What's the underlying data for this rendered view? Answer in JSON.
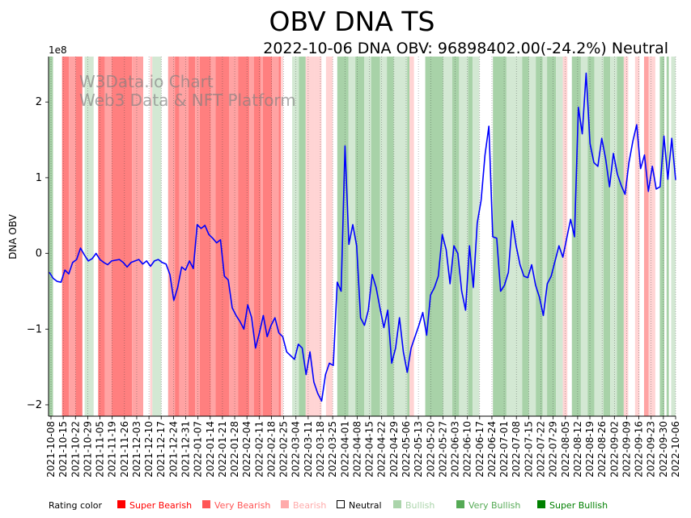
{
  "chart_data": {
    "type": "line",
    "title": "OBV DNA TS",
    "subtitle": "2022-10-06 DNA OBV: 96898402.00(-24.2%) Neutral",
    "ylabel": "DNA OBV",
    "xlabel": "",
    "y_exponent_label": "1e8",
    "ylim": [
      -2.15,
      2.6
    ],
    "y_ticks": [
      -2,
      -1,
      0,
      1,
      2
    ],
    "x_start": "2021-10-08",
    "x_end": "2022-10-06",
    "x_tick_labels": [
      "2021-10-08",
      "2021-10-15",
      "2021-10-22",
      "2021-10-29",
      "2021-11-05",
      "2021-11-19",
      "2021-11-26",
      "2021-12-03",
      "2021-12-10",
      "2021-12-17",
      "2021-12-24",
      "2021-12-31",
      "2022-01-07",
      "2022-01-14",
      "2022-01-21",
      "2022-01-28",
      "2022-02-04",
      "2022-02-11",
      "2022-02-18",
      "2022-02-25",
      "2022-03-04",
      "2022-03-11",
      "2022-03-18",
      "2022-03-25",
      "2022-04-01",
      "2022-04-08",
      "2022-04-15",
      "2022-04-22",
      "2022-04-29",
      "2022-05-06",
      "2022-05-13",
      "2022-05-20",
      "2022-05-27",
      "2022-06-03",
      "2022-06-10",
      "2022-06-17",
      "2022-06-24",
      "2022-07-01",
      "2022-07-08",
      "2022-07-15",
      "2022-07-22",
      "2022-07-29",
      "2022-08-05",
      "2022-08-12",
      "2022-08-19",
      "2022-08-26",
      "2022-09-02",
      "2022-09-09",
      "2022-09-16",
      "2022-09-23",
      "2022-09-30",
      "2022-10-06"
    ],
    "series": [
      {
        "name": "DNA OBV",
        "color": "#0000ff",
        "points": [
          [
            0,
            -0.25
          ],
          [
            1,
            -0.33
          ],
          [
            2,
            -0.37
          ],
          [
            3,
            -0.38
          ],
          [
            4,
            -0.22
          ],
          [
            5,
            -0.27
          ],
          [
            6,
            -0.12
          ],
          [
            7,
            -0.08
          ],
          [
            8,
            0.07
          ],
          [
            9,
            -0.02
          ],
          [
            10,
            -0.1
          ],
          [
            11,
            -0.07
          ],
          [
            12,
            0.0
          ],
          [
            13,
            -0.08
          ],
          [
            14,
            -0.12
          ],
          [
            15,
            -0.15
          ],
          [
            16,
            -0.1
          ],
          [
            17,
            -0.09
          ],
          [
            18,
            -0.08
          ],
          [
            19,
            -0.12
          ],
          [
            20,
            -0.18
          ],
          [
            21,
            -0.12
          ],
          [
            22,
            -0.1
          ],
          [
            23,
            -0.08
          ],
          [
            24,
            -0.14
          ],
          [
            25,
            -0.1
          ],
          [
            26,
            -0.17
          ],
          [
            27,
            -0.1
          ],
          [
            28,
            -0.08
          ],
          [
            29,
            -0.12
          ],
          [
            30,
            -0.14
          ],
          [
            31,
            -0.28
          ],
          [
            32,
            -0.62
          ],
          [
            33,
            -0.45
          ],
          [
            34,
            -0.18
          ],
          [
            35,
            -0.22
          ],
          [
            36,
            -0.1
          ],
          [
            37,
            -0.2
          ],
          [
            38,
            0.38
          ],
          [
            39,
            0.33
          ],
          [
            40,
            0.37
          ],
          [
            41,
            0.25
          ],
          [
            42,
            0.2
          ],
          [
            43,
            0.14
          ],
          [
            44,
            0.18
          ],
          [
            45,
            -0.3
          ],
          [
            46,
            -0.35
          ],
          [
            47,
            -0.72
          ],
          [
            48,
            -0.82
          ],
          [
            49,
            -0.9
          ],
          [
            50,
            -1.0
          ],
          [
            51,
            -0.68
          ],
          [
            52,
            -0.85
          ],
          [
            53,
            -1.25
          ],
          [
            54,
            -1.05
          ],
          [
            55,
            -0.82
          ],
          [
            56,
            -1.1
          ],
          [
            57,
            -0.95
          ],
          [
            58,
            -0.85
          ],
          [
            59,
            -1.05
          ],
          [
            60,
            -1.1
          ],
          [
            61,
            -1.3
          ],
          [
            62,
            -1.35
          ],
          [
            63,
            -1.4
          ],
          [
            64,
            -1.2
          ],
          [
            65,
            -1.25
          ],
          [
            66,
            -1.6
          ],
          [
            67,
            -1.3
          ],
          [
            68,
            -1.7
          ],
          [
            69,
            -1.85
          ],
          [
            70,
            -1.95
          ],
          [
            71,
            -1.6
          ],
          [
            72,
            -1.45
          ],
          [
            73,
            -1.48
          ],
          [
            74,
            -0.38
          ],
          [
            75,
            -0.5
          ],
          [
            76,
            1.42
          ],
          [
            77,
            0.12
          ],
          [
            78,
            0.38
          ],
          [
            79,
            0.1
          ],
          [
            80,
            -0.85
          ],
          [
            81,
            -0.95
          ],
          [
            82,
            -0.75
          ],
          [
            83,
            -0.28
          ],
          [
            84,
            -0.45
          ],
          [
            85,
            -0.72
          ],
          [
            86,
            -0.98
          ],
          [
            87,
            -0.75
          ],
          [
            88,
            -1.45
          ],
          [
            89,
            -1.25
          ],
          [
            90,
            -0.85
          ],
          [
            91,
            -1.3
          ],
          [
            92,
            -1.57
          ],
          [
            93,
            -1.25
          ],
          [
            94,
            -1.1
          ],
          [
            95,
            -0.95
          ],
          [
            96,
            -0.78
          ],
          [
            97,
            -1.08
          ],
          [
            98,
            -0.55
          ],
          [
            99,
            -0.45
          ],
          [
            100,
            -0.3
          ],
          [
            101,
            0.25
          ],
          [
            102,
            0.05
          ],
          [
            103,
            -0.4
          ],
          [
            104,
            0.1
          ],
          [
            105,
            0.0
          ],
          [
            106,
            -0.5
          ],
          [
            107,
            -0.75
          ],
          [
            108,
            0.1
          ],
          [
            109,
            -0.45
          ],
          [
            110,
            0.4
          ],
          [
            111,
            0.7
          ],
          [
            112,
            1.3
          ],
          [
            113,
            1.68
          ],
          [
            114,
            0.22
          ],
          [
            115,
            0.2
          ],
          [
            116,
            -0.5
          ],
          [
            117,
            -0.42
          ],
          [
            118,
            -0.25
          ],
          [
            119,
            0.43
          ],
          [
            120,
            0.1
          ],
          [
            121,
            -0.15
          ],
          [
            122,
            -0.3
          ],
          [
            123,
            -0.32
          ],
          [
            124,
            -0.15
          ],
          [
            125,
            -0.42
          ],
          [
            126,
            -0.58
          ],
          [
            127,
            -0.82
          ],
          [
            128,
            -0.4
          ],
          [
            129,
            -0.3
          ],
          [
            130,
            -0.1
          ],
          [
            131,
            0.1
          ],
          [
            132,
            -0.05
          ],
          [
            133,
            0.2
          ],
          [
            134,
            0.45
          ],
          [
            135,
            0.22
          ],
          [
            136,
            1.93
          ],
          [
            137,
            1.58
          ],
          [
            138,
            2.38
          ],
          [
            139,
            1.45
          ],
          [
            140,
            1.2
          ],
          [
            141,
            1.15
          ],
          [
            142,
            1.52
          ],
          [
            143,
            1.25
          ],
          [
            144,
            0.88
          ],
          [
            145,
            1.32
          ],
          [
            146,
            1.05
          ],
          [
            147,
            0.9
          ],
          [
            148,
            0.78
          ],
          [
            149,
            1.2
          ],
          [
            150,
            1.48
          ],
          [
            151,
            1.7
          ],
          [
            152,
            1.12
          ],
          [
            153,
            1.3
          ],
          [
            154,
            0.82
          ],
          [
            155,
            1.15
          ],
          [
            156,
            0.85
          ],
          [
            157,
            0.88
          ],
          [
            158,
            1.55
          ],
          [
            159,
            0.98
          ],
          [
            160,
            1.52
          ],
          [
            161,
            0.97
          ]
        ]
      }
    ],
    "rating_bands": [
      {
        "from": 0,
        "to": 2,
        "r": 6
      },
      {
        "from": 2,
        "to": 3,
        "r": 4
      },
      {
        "from": 6,
        "to": 9,
        "r": 1
      },
      {
        "from": 9,
        "to": 12,
        "r": 2
      },
      {
        "from": 12,
        "to": 15,
        "r": 1
      },
      {
        "from": 16,
        "to": 20,
        "r": 5
      },
      {
        "from": 22,
        "to": 25,
        "r": 1
      },
      {
        "from": 25,
        "to": 28,
        "r": 2
      },
      {
        "from": 28,
        "to": 37,
        "r": 1
      },
      {
        "from": 37,
        "to": 42,
        "r": 2
      },
      {
        "from": 42,
        "to": 45,
        "r": 4
      },
      {
        "from": 45,
        "to": 46,
        "r": 3
      },
      {
        "from": 46,
        "to": 50,
        "r": 5
      },
      {
        "from": 53,
        "to": 56,
        "r": 2
      },
      {
        "from": 56,
        "to": 58,
        "r": 1
      },
      {
        "from": 58,
        "to": 62,
        "r": 2
      },
      {
        "from": 62,
        "to": 65,
        "r": 1
      },
      {
        "from": 65,
        "to": 67,
        "r": 2
      },
      {
        "from": 67,
        "to": 72,
        "r": 1
      },
      {
        "from": 72,
        "to": 74,
        "r": 2
      },
      {
        "from": 74,
        "to": 80,
        "r": 1
      },
      {
        "from": 80,
        "to": 84,
        "r": 2
      },
      {
        "from": 84,
        "to": 89,
        "r": 1
      },
      {
        "from": 89,
        "to": 91,
        "r": 2
      },
      {
        "from": 91,
        "to": 94,
        "r": 1
      },
      {
        "from": 94,
        "to": 95,
        "r": 2
      },
      {
        "from": 95,
        "to": 99,
        "r": 1
      },
      {
        "from": 99,
        "to": 102,
        "r": 2
      },
      {
        "from": 102,
        "to": 103,
        "r": 1
      },
      {
        "from": 103,
        "to": 104,
        "r": 3
      },
      {
        "from": 104,
        "to": 108,
        "r": 4
      },
      {
        "from": 108,
        "to": 111,
        "r": 5
      },
      {
        "from": 111,
        "to": 114,
        "r": 6
      },
      {
        "from": 114,
        "to": 118,
        "r": 3
      },
      {
        "from": 118,
        "to": 121,
        "r": 3
      },
      {
        "from": 123,
        "to": 126,
        "r": 3
      },
      {
        "from": 128,
        "to": 133,
        "r": 6
      },
      {
        "from": 133,
        "to": 136,
        "r": 5
      },
      {
        "from": 136,
        "to": 140,
        "r": 6
      },
      {
        "from": 140,
        "to": 143,
        "r": 5
      },
      {
        "from": 143,
        "to": 147,
        "r": 6
      },
      {
        "from": 147,
        "to": 150,
        "r": 5
      },
      {
        "from": 150,
        "to": 153,
        "r": 6
      },
      {
        "from": 153,
        "to": 159,
        "r": 5
      },
      {
        "from": 159,
        "to": 160,
        "r": 6
      },
      {
        "from": 160,
        "to": 162,
        "r": 3
      },
      {
        "from": 167,
        "to": 175,
        "r": 6
      },
      {
        "from": 175,
        "to": 179,
        "r": 5
      },
      {
        "from": 179,
        "to": 182,
        "r": 6
      },
      {
        "from": 182,
        "to": 186,
        "r": 5
      },
      {
        "from": 186,
        "to": 188,
        "r": 6
      },
      {
        "from": 188,
        "to": 191,
        "r": 5
      },
      {
        "from": 197,
        "to": 203,
        "r": 6
      },
      {
        "from": 203,
        "to": 210,
        "r": 5
      },
      {
        "from": 210,
        "to": 213,
        "r": 6
      },
      {
        "from": 213,
        "to": 216,
        "r": 5
      },
      {
        "from": 216,
        "to": 219,
        "r": 6
      },
      {
        "from": 219,
        "to": 221,
        "r": 5
      },
      {
        "from": 221,
        "to": 225,
        "r": 6
      },
      {
        "from": 225,
        "to": 228,
        "r": 5
      },
      {
        "from": 228,
        "to": 230,
        "r": 3
      },
      {
        "from": 232,
        "to": 236,
        "r": 6
      },
      {
        "from": 236,
        "to": 239,
        "r": 5
      },
      {
        "from": 239,
        "to": 242,
        "r": 6
      },
      {
        "from": 242,
        "to": 246,
        "r": 5
      },
      {
        "from": 246,
        "to": 249,
        "r": 6
      },
      {
        "from": 249,
        "to": 252,
        "r": 5
      },
      {
        "from": 252,
        "to": 255,
        "r": 6
      },
      {
        "from": 255,
        "to": 257,
        "r": 3
      },
      {
        "from": 260,
        "to": 262,
        "r": 3
      },
      {
        "from": 264,
        "to": 266,
        "r": 2
      },
      {
        "from": 266,
        "to": 269,
        "r": 3
      },
      {
        "from": 271,
        "to": 273,
        "r": 6
      },
      {
        "from": 274,
        "to": 275,
        "r": 6
      },
      {
        "from": 276,
        "to": 278,
        "r": 5
      }
    ],
    "band_scale_max": 278,
    "rating_colors": {
      "1": "#ff0000",
      "2": "#ff5555",
      "3": "#ffaaaa",
      "4": "#ffffff",
      "5": "#aad4aa",
      "6": "#55aa55",
      "7": "#008000"
    },
    "band_colors": {
      "1": "#ff7f7f",
      "2": "#ffa3a3",
      "3": "#ffd4d4",
      "4": "#ffffff",
      "5": "#d3e8d3",
      "6": "#a8d2a8",
      "7": "#7fbf7f"
    },
    "legend": {
      "title": "Rating color",
      "entries": [
        {
          "label": "Super Bearish",
          "color": "#ff0000"
        },
        {
          "label": "Very Bearish",
          "color": "#ff5555"
        },
        {
          "label": "Bearish",
          "color": "#ffaaaa"
        },
        {
          "label": "Neutral",
          "color": "#000000"
        },
        {
          "label": "Bullish",
          "color": "#aad4aa"
        },
        {
          "label": "Very Bullish",
          "color": "#55aa55"
        },
        {
          "label": "Super Bullish",
          "color": "#008000"
        }
      ]
    },
    "watermark": [
      "W3Data.io Chart",
      "Web3 Data & NFT Platform"
    ]
  }
}
